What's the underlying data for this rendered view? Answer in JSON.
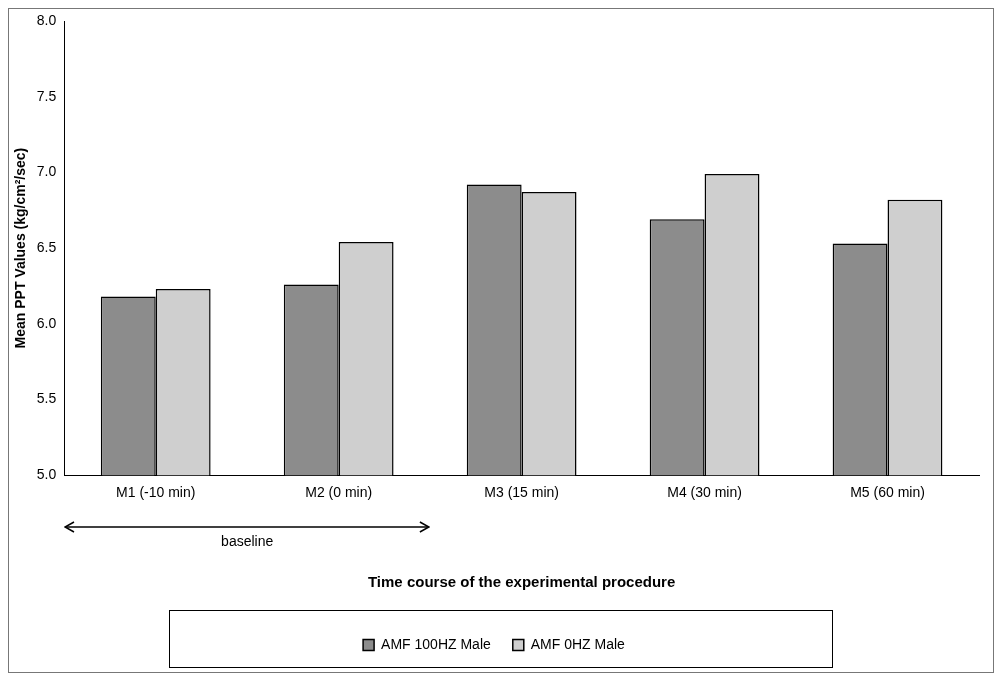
{
  "chart_data": {
    "type": "bar",
    "xlabel": "Time course of the experimental procedure",
    "ylabel": "Mean PPT Values (kg/cm²/sec)",
    "categories": [
      "M1 (-10 min)",
      "M2 (0 min)",
      "M3 (15 min)",
      "M4 (30 min)",
      "M5 (60 min)"
    ],
    "series": [
      {
        "name": "AMF 100HZ Male",
        "color": "#8c8c8c",
        "values": [
          6.18,
          6.26,
          6.92,
          6.69,
          6.53
        ]
      },
      {
        "name": "AMF 0HZ Male",
        "color": "#cfcfcf",
        "values": [
          6.23,
          6.54,
          6.87,
          6.99,
          6.82
        ]
      }
    ],
    "ylim": [
      5.0,
      8.0
    ],
    "yticks": [
      {
        "value": 5,
        "label": "5.0"
      },
      {
        "value": 5.5,
        "label": "5.5"
      },
      {
        "value": 6,
        "label": "6.0"
      },
      {
        "value": 6.5,
        "label": "6.5"
      },
      {
        "value": 7,
        "label": "7.0"
      },
      {
        "value": 7.5,
        "label": "7.5"
      },
      {
        "value": 8,
        "label": "8.0"
      }
    ],
    "annotations": [
      "baseline"
    ],
    "grid": false,
    "legend": "bottom"
  }
}
